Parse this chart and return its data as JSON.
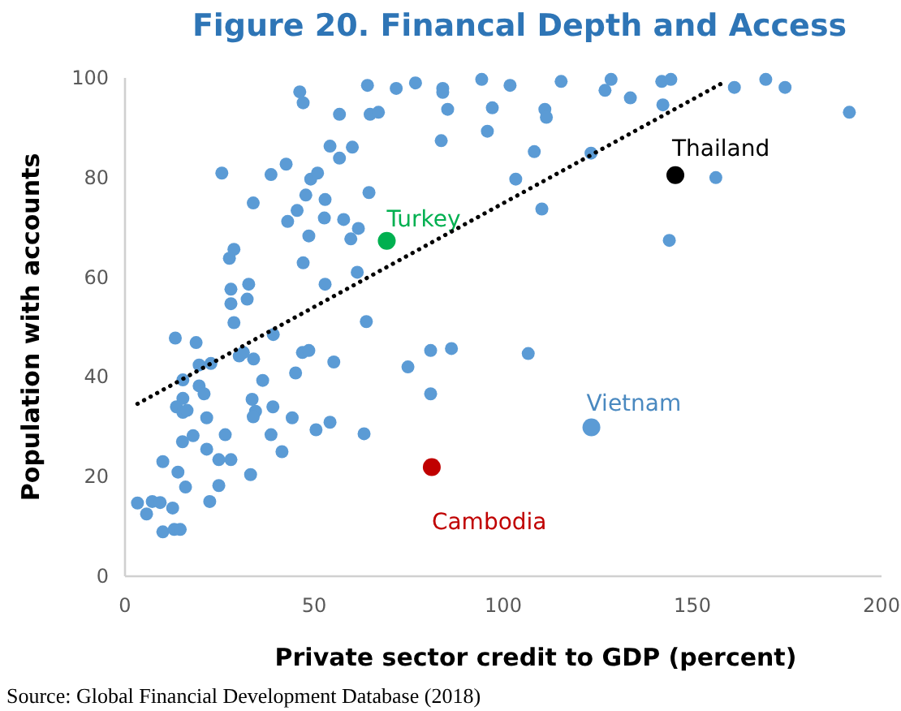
{
  "chart_data": {
    "type": "scatter",
    "title": "Figure 20. Financal Depth and Access",
    "xlabel": "Private sector credit to GDP (percent)",
    "ylabel": "Population with accounts",
    "xlim": [
      0,
      200
    ],
    "ylim": [
      0,
      100
    ],
    "xticks": [
      0,
      50,
      100,
      150,
      200
    ],
    "yticks": [
      0,
      20,
      40,
      60,
      80,
      100
    ],
    "grid": false,
    "marker": "circle",
    "series": [
      {
        "color": "#5b9bd5",
        "x": [
          25.6,
          46.2,
          47.1,
          56.7,
          64.1,
          64.8,
          54.2,
          60.1,
          56.7,
          42.6,
          38.6,
          49.1,
          50.9,
          47.8,
          52.9,
          33.9,
          45.5,
          43.0,
          52.7,
          57.8,
          61.7,
          59.7,
          48.6,
          64.5,
          28.8,
          27.6,
          47.1,
          61.4,
          28.0,
          32.7,
          28.0,
          32.3,
          52.9,
          28.8,
          63.8,
          13.3,
          18.8,
          19.6,
          22.7,
          15.3,
          39.2,
          30.2,
          31.3,
          34.0,
          36.4,
          46.9,
          48.6,
          55.2,
          45.1,
          19.6,
          20.9,
          15.3,
          13.6,
          15.3,
          16.4,
          21.6,
          33.6,
          34.5,
          33.9,
          39.1,
          44.2,
          50.5,
          54.2,
          63.2,
          38.6,
          41.5,
          26.5,
          18.0,
          15.2,
          21.6,
          24.8,
          28.0,
          10.0,
          14.0,
          16.0,
          33.2,
          24.8,
          22.4,
          3.3,
          5.7,
          7.2,
          9.3,
          12.6,
          10.0,
          13.0,
          14.6,
          71.7,
          76.8,
          84.0,
          84.0,
          94.3,
          101.8,
          115.3,
          128.5,
          126.9,
          133.6,
          141.9,
          144.3,
          142.2,
          161.1,
          169.4,
          174.5,
          191.5,
          67.0,
          85.3,
          97.1,
          111.0,
          111.4,
          83.6,
          95.8,
          108.2,
          123.2,
          103.3,
          110.2,
          156.2,
          143.9,
          80.8,
          86.3,
          74.8,
          106.6,
          80.8
        ],
        "values": [
          80.9,
          97.2,
          95.0,
          92.7,
          98.5,
          92.7,
          86.3,
          86.1,
          83.9,
          82.7,
          80.6,
          79.7,
          80.9,
          76.5,
          75.6,
          74.9,
          73.4,
          71.2,
          71.9,
          71.6,
          69.8,
          67.7,
          68.3,
          77.0,
          65.6,
          63.8,
          62.9,
          61.0,
          57.6,
          58.6,
          54.7,
          55.6,
          58.6,
          50.9,
          51.1,
          47.8,
          46.9,
          42.4,
          42.7,
          39.4,
          48.5,
          44.2,
          44.9,
          43.6,
          39.3,
          44.9,
          45.3,
          43.0,
          40.8,
          38.2,
          36.6,
          35.7,
          34.0,
          32.9,
          33.3,
          31.8,
          35.5,
          33.1,
          32.0,
          34.0,
          31.8,
          29.4,
          30.9,
          28.6,
          28.4,
          25.0,
          28.4,
          28.2,
          27.0,
          25.5,
          23.4,
          23.4,
          23.0,
          20.9,
          17.9,
          20.4,
          18.2,
          15.0,
          14.7,
          12.5,
          15.0,
          14.8,
          13.7,
          8.9,
          9.4,
          9.4,
          97.9,
          99.0,
          97.9,
          97.1,
          99.7,
          98.5,
          99.3,
          99.7,
          97.5,
          96.0,
          99.3,
          99.7,
          94.6,
          98.1,
          99.7,
          98.1,
          93.1,
          93.1,
          93.7,
          94.0,
          93.7,
          92.1,
          87.4,
          89.3,
          85.2,
          84.9,
          79.7,
          73.7,
          80.0,
          67.4,
          45.3,
          45.7,
          42.0,
          44.7,
          36.6
        ]
      },
      {
        "name": "Turkey",
        "color": "#00b050",
        "x": [
          69.2
        ],
        "values": [
          67.3
        ]
      },
      {
        "name": "Thailand",
        "color": "#000000",
        "x": [
          145.5
        ],
        "values": [
          80.5
        ]
      },
      {
        "name": "Vietnam",
        "color": "#5b9bd5",
        "x": [
          123.3
        ],
        "values": [
          29.9
        ]
      },
      {
        "name": "Cambodia",
        "color": "#c00000",
        "x": [
          81.1
        ],
        "values": [
          21.9
        ]
      },
      {
        "type": "line",
        "color": "#000000",
        "line_style": "dotted",
        "marker": "none",
        "x": [
          3.3,
          158.7
        ],
        "values": [
          34.6,
          99.3
        ]
      }
    ],
    "annotations": [
      "Source: Global Financial Development Database (2018)"
    ]
  }
}
